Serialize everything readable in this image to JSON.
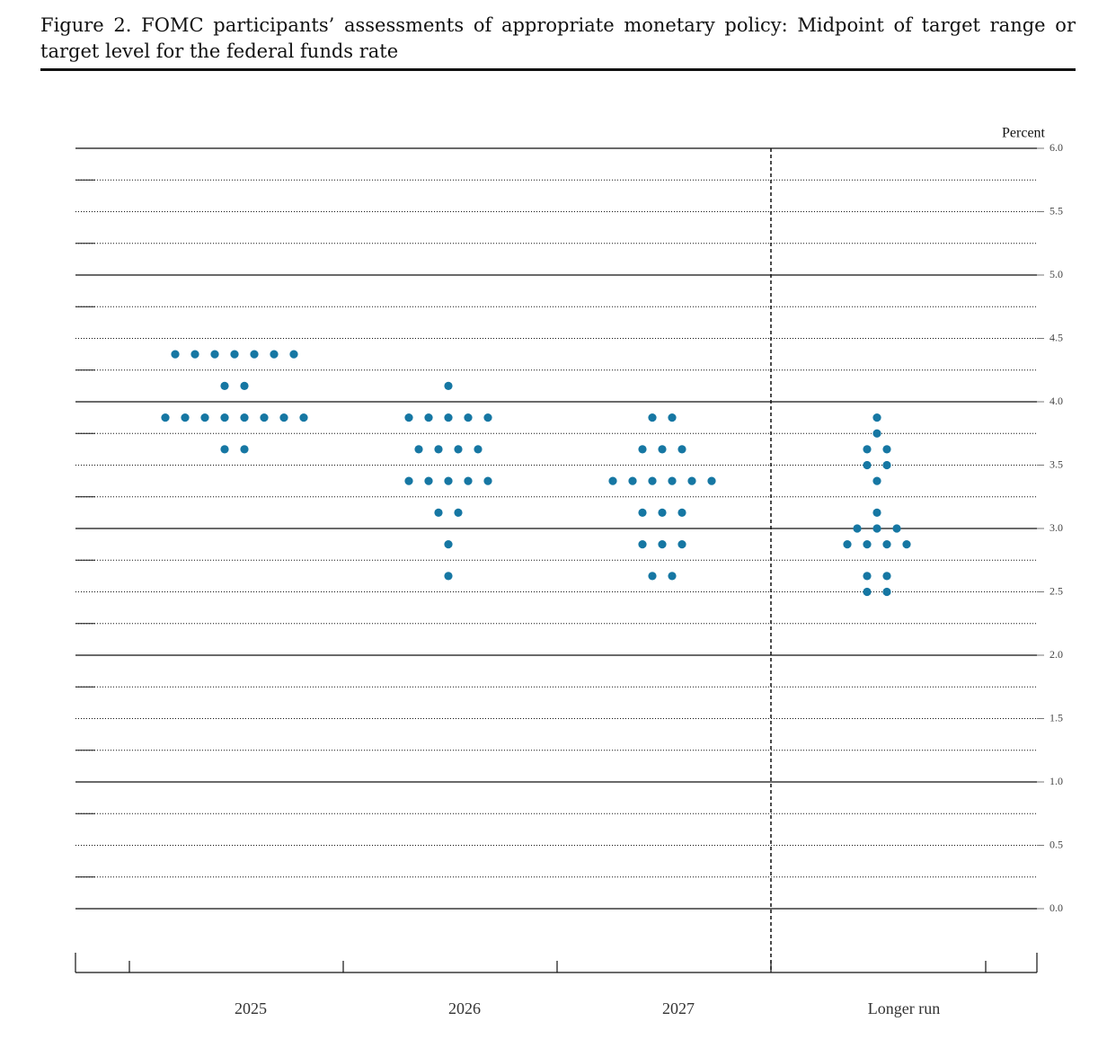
{
  "chart_data": {
    "type": "dot",
    "title": "Figure 2.  FOMC participants’ assessments of appropriate monetary policy: Midpoint of target range or target level for the federal funds rate",
    "y_label": "Percent",
    "categories": [
      "2025",
      "2026",
      "2027",
      "Longer run"
    ],
    "color": "#1677a3",
    "values": [
      [
        4.375,
        4.375,
        4.375,
        4.375,
        4.375,
        4.375,
        4.375,
        4.125,
        4.125,
        3.875,
        3.875,
        3.875,
        3.875,
        3.875,
        3.875,
        3.875,
        3.875,
        3.625,
        3.625
      ],
      [
        4.125,
        3.875,
        3.875,
        3.875,
        3.875,
        3.875,
        3.625,
        3.625,
        3.625,
        3.625,
        3.375,
        3.375,
        3.375,
        3.375,
        3.375,
        3.125,
        3.125,
        2.875,
        2.625
      ],
      [
        3.875,
        3.875,
        3.625,
        3.625,
        3.625,
        3.375,
        3.375,
        3.375,
        3.375,
        3.375,
        3.375,
        3.125,
        3.125,
        3.125,
        2.875,
        2.875,
        2.875,
        2.625,
        2.625
      ],
      [
        3.875,
        3.75,
        3.625,
        3.625,
        3.5,
        3.5,
        3.375,
        3.125,
        3.0,
        3.0,
        3.0,
        2.875,
        2.875,
        2.875,
        2.875,
        2.625,
        2.625,
        2.5,
        2.5
      ]
    ],
    "ylim": [
      0,
      6
    ],
    "yticks": [
      {
        "value": 0,
        "label": "0.0"
      },
      {
        "value": 0.5,
        "label": "0.5"
      },
      {
        "value": 1,
        "label": "1.0"
      },
      {
        "value": 1.5,
        "label": "1.5"
      },
      {
        "value": 2,
        "label": "2.0"
      },
      {
        "value": 2.5,
        "label": "2.5"
      },
      {
        "value": 3,
        "label": "3.0"
      },
      {
        "value": 3.5,
        "label": "3.5"
      },
      {
        "value": 4,
        "label": "4.0"
      },
      {
        "value": 4.5,
        "label": "4.5"
      },
      {
        "value": 5,
        "label": "5.0"
      },
      {
        "value": 5.5,
        "label": "5.5"
      },
      {
        "value": 6,
        "label": "6.0"
      }
    ],
    "grid": true
  }
}
